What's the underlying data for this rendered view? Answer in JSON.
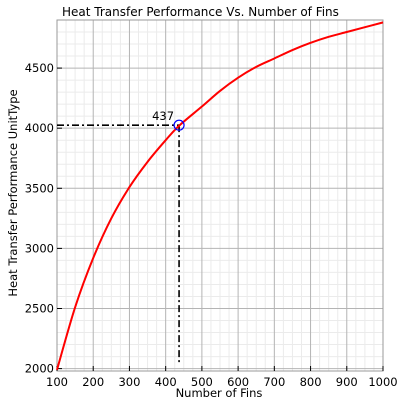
{
  "chart_data": {
    "type": "line",
    "title": "Heat Transfer Performance Vs. Number of Fins",
    "xlabel": "Number of Fins",
    "ylabel": "Heat Transfer Performance UnitType",
    "xlim": [
      100,
      1000
    ],
    "ylim": [
      1980,
      4900
    ],
    "xticks": [
      100,
      200,
      300,
      400,
      500,
      600,
      700,
      800,
      900,
      1000
    ],
    "yticks": [
      2000,
      2500,
      3000,
      3500,
      4000,
      4500
    ],
    "grid": true,
    "legend": "none",
    "curve_color": "#ff0000",
    "marker_color": "#0000ff",
    "series": [
      {
        "x": [
          100,
          150,
          200,
          250,
          300,
          350,
          400,
          437,
          500,
          550,
          600,
          650,
          700,
          750,
          800,
          850,
          900,
          950,
          1000
        ],
        "y": [
          1990,
          2510,
          2920,
          3250,
          3510,
          3720,
          3900,
          4020,
          4180,
          4310,
          4420,
          4510,
          4580,
          4650,
          4710,
          4760,
          4800,
          4840,
          4880
        ]
      }
    ],
    "highlight": {
      "x": 437,
      "y": 4025,
      "label": "437"
    }
  }
}
